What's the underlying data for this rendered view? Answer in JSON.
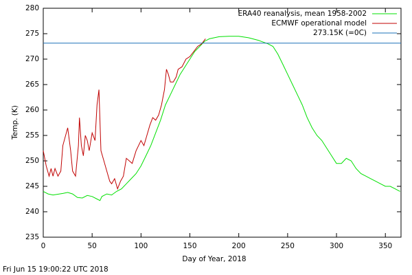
{
  "chart_data": {
    "type": "line",
    "xlabel": "Day of Year, 2018",
    "ylabel": "Temp. (K)",
    "footer": "Fri Jun 15 19:00:22 UTC 2018",
    "xlim": [
      0,
      366
    ],
    "xticks": [
      0,
      50,
      100,
      150,
      200,
      250,
      300,
      350
    ],
    "ylim": [
      235,
      280
    ],
    "yticks": [
      235,
      240,
      245,
      250,
      255,
      260,
      265,
      270,
      275,
      280
    ],
    "grid": false,
    "legend": "top-right",
    "series": [
      {
        "name": "ERA40 reanalysis, mean 1958-2002",
        "color": "#00e000",
        "x": [
          0,
          5,
          10,
          20,
          25,
          30,
          35,
          40,
          45,
          50,
          55,
          58,
          60,
          65,
          70,
          75,
          80,
          85,
          90,
          95,
          100,
          105,
          110,
          115,
          120,
          125,
          130,
          135,
          140,
          145,
          150,
          155,
          160,
          165,
          170,
          180,
          190,
          200,
          210,
          220,
          230,
          235,
          240,
          245,
          250,
          255,
          260,
          265,
          270,
          275,
          280,
          285,
          290,
          295,
          300,
          305,
          310,
          315,
          320,
          325,
          330,
          335,
          340,
          345,
          350,
          355,
          360,
          365
        ],
        "values": [
          244,
          243.5,
          243.3,
          243.6,
          243.8,
          243.5,
          242.8,
          242.7,
          243.2,
          243,
          242.5,
          242.2,
          243,
          243.5,
          243.3,
          244,
          244.5,
          245.5,
          246.5,
          247.5,
          249,
          251,
          253,
          255.5,
          258,
          261,
          263,
          265,
          267,
          268.5,
          270,
          271.5,
          272.5,
          273.5,
          274,
          274.4,
          274.5,
          274.5,
          274.2,
          273.7,
          273,
          272.5,
          271,
          269,
          267,
          265,
          263,
          261,
          258.5,
          256.5,
          255,
          254,
          252.5,
          251,
          249.5,
          249.5,
          250.5,
          250,
          248.5,
          247.5,
          247,
          246.5,
          246,
          245.5,
          245,
          245,
          244.5,
          244
        ]
      },
      {
        "name": "ECMWF operational model",
        "color": "#c00000",
        "x": [
          0,
          3,
          6,
          8,
          10,
          12,
          15,
          18,
          20,
          25,
          28,
          30,
          33,
          36,
          37,
          39,
          41,
          43,
          45,
          47,
          50,
          53,
          55,
          57,
          59,
          62,
          65,
          68,
          70,
          73,
          76,
          79,
          82,
          85,
          88,
          91,
          95,
          100,
          103,
          106,
          109,
          112,
          115,
          118,
          121,
          124,
          126,
          128,
          130,
          133,
          136,
          138,
          142,
          146,
          150,
          154,
          158,
          162,
          166
        ],
        "values": [
          252,
          249,
          247,
          248.5,
          247,
          248.5,
          247,
          248,
          253,
          256.5,
          252,
          248,
          247,
          253,
          258.5,
          253,
          251,
          255,
          254,
          252,
          255.5,
          254,
          261,
          264,
          252,
          250,
          248,
          246,
          245.5,
          246.5,
          244.5,
          246,
          247,
          250.5,
          250,
          249.5,
          252,
          254,
          253,
          255,
          257,
          258.5,
          258,
          259,
          261,
          264,
          268,
          267,
          265.5,
          265.5,
          266.5,
          268,
          268.5,
          270,
          270.5,
          271.5,
          272.5,
          273,
          274
        ]
      },
      {
        "name": "273.15K (=0C)",
        "color": "#1a70b8",
        "y": 273.15
      }
    ]
  }
}
